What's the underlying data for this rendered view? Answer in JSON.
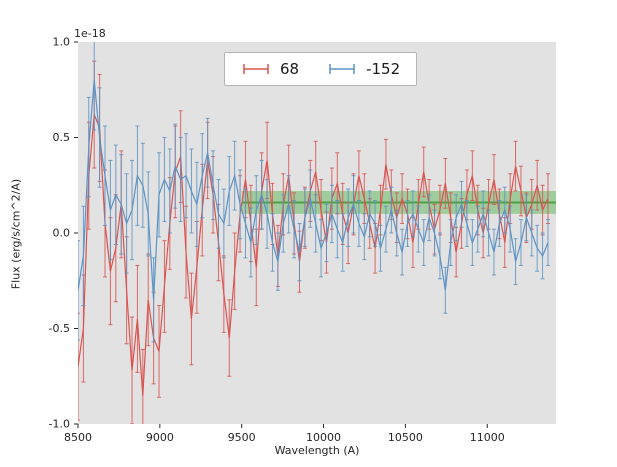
{
  "figure": {
    "bg": "#ffffff",
    "axes_bg": "#e2e2e2",
    "tick_color": "#262626",
    "text_color": "#262626"
  },
  "chart_data": {
    "type": "line",
    "title": "",
    "xlabel": "Wavelength (A)",
    "ylabel": "Flux (erg/s/cm^2/A)",
    "offset_text": "1e-18",
    "xlim": [
      8500,
      11420
    ],
    "ylim": [
      -1.0,
      1.0
    ],
    "xticks": [
      8500,
      9000,
      9500,
      10000,
      10500,
      11000
    ],
    "xtick_labels": [
      "8500",
      "9000",
      "9500",
      "10000",
      "10500",
      "11000"
    ],
    "yticks": [
      -1.0,
      -0.5,
      0.0,
      0.5,
      1.0
    ],
    "ytick_labels": [
      "-1.0",
      "-0.5",
      "0.0",
      "0.5",
      "1.0"
    ],
    "grid": false,
    "legend": {
      "position": "upper center",
      "entries": [
        {
          "label": "68",
          "color": "#d9534f"
        },
        {
          "label": "-152",
          "color": "#5b93c4"
        }
      ]
    },
    "band": {
      "x_start": 9500,
      "x_end": 11420,
      "y_center": 0.16,
      "y_half_width": 0.06,
      "color": "#4daf4a",
      "alpha": 0.45,
      "line_color": "#3d9c3a"
    },
    "series": [
      {
        "name": "68",
        "color": "#d9534f",
        "x_start": 8500,
        "x_step": 33,
        "y": [
          -0.7,
          -0.5,
          0.3,
          0.62,
          0.55,
          0.05,
          -0.2,
          -0.08,
          0.15,
          -0.3,
          -0.72,
          -0.45,
          -0.85,
          -0.35,
          -0.55,
          -0.62,
          -0.28,
          0.05,
          0.32,
          0.4,
          -0.1,
          -0.45,
          -0.18,
          0.12,
          0.38,
          0.2,
          -0.05,
          -0.32,
          -0.55,
          -0.2,
          0.1,
          0.28,
          0.05,
          -0.18,
          0.22,
          0.38,
          0.1,
          -0.12,
          0.15,
          0.3,
          0.05,
          -0.15,
          0.08,
          0.22,
          0.32,
          0.12,
          -0.05,
          0.18,
          0.26,
          0.1,
          0.0,
          0.15,
          0.3,
          0.18,
          0.05,
          -0.08,
          0.12,
          0.36,
          0.2,
          0.08,
          0.18,
          0.1,
          -0.05,
          0.15,
          0.32,
          0.15,
          0.02,
          0.12,
          0.26,
          0.08,
          -0.1,
          0.05,
          0.2,
          0.3,
          0.12,
          0.0,
          0.15,
          0.28,
          0.1,
          -0.05,
          0.18,
          0.35,
          0.22,
          0.08,
          0.15,
          0.25,
          0.12,
          0.18
        ],
        "yerr": [
          0.28,
          0.28,
          0.28,
          0.28,
          0.28,
          0.28,
          0.28,
          0.28,
          0.28,
          0.28,
          0.28,
          0.28,
          0.24,
          0.24,
          0.24,
          0.24,
          0.24,
          0.24,
          0.24,
          0.24,
          0.24,
          0.24,
          0.24,
          0.24,
          0.2,
          0.2,
          0.2,
          0.2,
          0.2,
          0.2,
          0.2,
          0.2,
          0.2,
          0.2,
          0.2,
          0.2,
          0.16,
          0.16,
          0.16,
          0.16,
          0.16,
          0.16,
          0.16,
          0.16,
          0.16,
          0.16,
          0.16,
          0.16,
          0.16,
          0.16,
          0.16,
          0.16,
          0.13,
          0.13,
          0.13,
          0.13,
          0.13,
          0.13,
          0.13,
          0.13,
          0.13,
          0.13,
          0.13,
          0.13,
          0.13,
          0.13,
          0.13,
          0.13,
          0.13,
          0.13,
          0.13,
          0.13,
          0.13,
          0.13,
          0.13,
          0.13,
          0.13,
          0.13,
          0.13,
          0.13,
          0.13,
          0.13,
          0.13,
          0.13,
          0.13,
          0.13,
          0.13,
          0.13
        ]
      },
      {
        "name": "-152",
        "color": "#5b93c4",
        "x_start": 8500,
        "x_step": 33,
        "y": [
          -0.3,
          -0.12,
          0.45,
          0.8,
          0.5,
          0.3,
          0.12,
          0.2,
          0.15,
          0.05,
          0.12,
          0.3,
          0.25,
          0.1,
          -0.35,
          0.2,
          0.28,
          0.22,
          0.35,
          0.28,
          0.3,
          0.22,
          0.15,
          0.3,
          0.42,
          0.25,
          0.1,
          0.05,
          0.22,
          0.3,
          0.15,
          0.05,
          -0.05,
          0.12,
          0.2,
          0.1,
          -0.05,
          -0.15,
          0.05,
          0.15,
          0.02,
          -0.1,
          0.08,
          0.18,
          0.05,
          -0.08,
          0.0,
          0.1,
          0.02,
          -0.05,
          0.08,
          0.15,
          0.05,
          -0.02,
          0.1,
          0.05,
          -0.08,
          0.02,
          0.12,
          0.0,
          -0.1,
          0.05,
          0.1,
          0.02,
          -0.05,
          0.08,
          0.0,
          -0.12,
          -0.3,
          -0.05,
          0.08,
          0.15,
          0.05,
          -0.05,
          0.02,
          0.1,
          0.0,
          -0.1,
          0.05,
          0.12,
          0.02,
          -0.15,
          -0.05,
          0.08,
          0.0,
          -0.08,
          -0.12,
          -0.05
        ],
        "yerr": [
          0.26,
          0.26,
          0.26,
          0.26,
          0.26,
          0.26,
          0.26,
          0.26,
          0.26,
          0.26,
          0.26,
          0.26,
          0.22,
          0.22,
          0.22,
          0.22,
          0.22,
          0.22,
          0.22,
          0.22,
          0.22,
          0.22,
          0.22,
          0.22,
          0.18,
          0.18,
          0.18,
          0.18,
          0.18,
          0.18,
          0.18,
          0.18,
          0.18,
          0.18,
          0.18,
          0.18,
          0.15,
          0.15,
          0.15,
          0.15,
          0.15,
          0.15,
          0.15,
          0.15,
          0.15,
          0.15,
          0.15,
          0.15,
          0.15,
          0.15,
          0.15,
          0.15,
          0.12,
          0.12,
          0.12,
          0.12,
          0.12,
          0.12,
          0.12,
          0.12,
          0.12,
          0.12,
          0.12,
          0.12,
          0.12,
          0.12,
          0.12,
          0.12,
          0.12,
          0.12,
          0.12,
          0.12,
          0.12,
          0.12,
          0.12,
          0.12,
          0.12,
          0.12,
          0.12,
          0.12,
          0.12,
          0.12,
          0.12,
          0.12,
          0.12,
          0.12,
          0.12,
          0.12
        ]
      }
    ]
  }
}
